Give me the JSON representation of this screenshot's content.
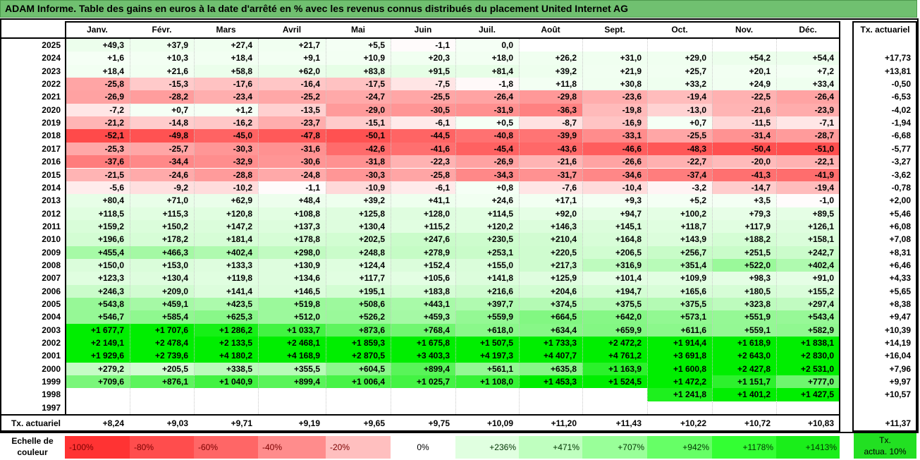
{
  "title": "ADAM Informe. Table des gains en euros à la date d'arrêté en % avec les revenus connus distribués du placement United Internet AG",
  "chart_data": {
    "type": "table",
    "columns": [
      "Janv.",
      "Févr.",
      "Mars",
      "Avril",
      "Mai",
      "Juin",
      "Juil.",
      "Août",
      "Sept.",
      "Oct.",
      "Nov.",
      "Déc."
    ],
    "actuarial_header": "Tx. actuariel",
    "rows": [
      {
        "year": "2025",
        "values": [
          "+49,3",
          "+37,9",
          "+27,4",
          "+21,7",
          "+5,5",
          "-1,1",
          "0,0",
          "",
          "",
          "",
          "",
          ""
        ],
        "tx": ""
      },
      {
        "year": "2024",
        "values": [
          "+1,6",
          "+10,3",
          "+18,4",
          "+9,1",
          "+10,9",
          "+20,3",
          "+18,0",
          "+26,2",
          "+31,0",
          "+29,0",
          "+54,2",
          "+54,4"
        ],
        "tx": "+17,73"
      },
      {
        "year": "2023",
        "values": [
          "+18,4",
          "+21,6",
          "+58,8",
          "+62,0",
          "+83,8",
          "+91,5",
          "+81,4",
          "+39,2",
          "+21,9",
          "+25,7",
          "+20,1",
          "+7,2"
        ],
        "tx": "+13,81"
      },
      {
        "year": "2022",
        "values": [
          "-25,8",
          "-15,3",
          "-17,6",
          "-16,4",
          "-17,5",
          "-7,5",
          "-1,8",
          "+11,8",
          "+30,8",
          "+33,2",
          "+24,9",
          "+33,4"
        ],
        "tx": "-0,50"
      },
      {
        "year": "2021",
        "values": [
          "-26,9",
          "-28,2",
          "-23,4",
          "-25,2",
          "-24,7",
          "-25,5",
          "-26,4",
          "-29,8",
          "-23,6",
          "-19,4",
          "-22,5",
          "-26,4"
        ],
        "tx": "-6,53"
      },
      {
        "year": "2020",
        "values": [
          "-7,2",
          "+0,7",
          "+1,2",
          "-13,5",
          "-29,0",
          "-30,5",
          "-31,9",
          "-36,3",
          "-19,8",
          "-13,0",
          "-21,6",
          "-23,9"
        ],
        "tx": "-4,02"
      },
      {
        "year": "2019",
        "values": [
          "-21,2",
          "-14,8",
          "-16,2",
          "-23,7",
          "-15,1",
          "-6,1",
          "+0,5",
          "-8,7",
          "-16,9",
          "+0,7",
          "-11,5",
          "-7,1"
        ],
        "tx": "-1,94"
      },
      {
        "year": "2018",
        "values": [
          "-52,1",
          "-49,8",
          "-45,0",
          "-47,8",
          "-50,1",
          "-44,5",
          "-40,8",
          "-39,9",
          "-33,1",
          "-25,5",
          "-31,4",
          "-28,7"
        ],
        "tx": "-6,68"
      },
      {
        "year": "2017",
        "values": [
          "-25,3",
          "-25,7",
          "-30,3",
          "-31,6",
          "-42,6",
          "-41,6",
          "-45,4",
          "-43,6",
          "-46,6",
          "-48,3",
          "-50,4",
          "-51,0"
        ],
        "tx": "-5,77"
      },
      {
        "year": "2016",
        "values": [
          "-37,6",
          "-34,4",
          "-32,9",
          "-30,6",
          "-31,8",
          "-22,3",
          "-26,9",
          "-21,6",
          "-26,6",
          "-22,7",
          "-20,0",
          "-22,1"
        ],
        "tx": "-3,27"
      },
      {
        "year": "2015",
        "values": [
          "-21,5",
          "-24,6",
          "-28,8",
          "-24,8",
          "-30,3",
          "-25,8",
          "-34,3",
          "-31,7",
          "-34,6",
          "-37,4",
          "-41,3",
          "-41,9"
        ],
        "tx": "-3,62"
      },
      {
        "year": "2014",
        "values": [
          "-5,6",
          "-9,2",
          "-10,2",
          "-1,1",
          "-10,9",
          "-6,1",
          "+0,8",
          "-7,6",
          "-10,4",
          "-3,2",
          "-14,7",
          "-19,4"
        ],
        "tx": "-0,78"
      },
      {
        "year": "2013",
        "values": [
          "+80,4",
          "+71,0",
          "+62,9",
          "+48,4",
          "+39,2",
          "+41,1",
          "+24,6",
          "+17,1",
          "+9,3",
          "+5,2",
          "+3,5",
          "-1,0"
        ],
        "tx": "+2,00"
      },
      {
        "year": "2012",
        "values": [
          "+118,5",
          "+115,3",
          "+120,8",
          "+108,8",
          "+125,8",
          "+128,0",
          "+114,5",
          "+92,0",
          "+94,7",
          "+100,2",
          "+79,3",
          "+89,5"
        ],
        "tx": "+5,46"
      },
      {
        "year": "2011",
        "values": [
          "+159,2",
          "+150,2",
          "+147,2",
          "+137,3",
          "+130,4",
          "+115,2",
          "+120,2",
          "+146,3",
          "+145,1",
          "+118,7",
          "+117,9",
          "+126,1"
        ],
        "tx": "+6,08"
      },
      {
        "year": "2010",
        "values": [
          "+196,6",
          "+178,2",
          "+181,4",
          "+178,8",
          "+202,5",
          "+247,6",
          "+230,5",
          "+210,4",
          "+164,8",
          "+143,9",
          "+188,2",
          "+158,1"
        ],
        "tx": "+7,08"
      },
      {
        "year": "2009",
        "values": [
          "+455,4",
          "+466,3",
          "+402,4",
          "+298,0",
          "+248,8",
          "+278,9",
          "+253,1",
          "+220,5",
          "+206,5",
          "+256,7",
          "+251,5",
          "+242,7"
        ],
        "tx": "+8,31"
      },
      {
        "year": "2008",
        "values": [
          "+150,0",
          "+153,0",
          "+133,3",
          "+130,9",
          "+124,4",
          "+152,4",
          "+155,0",
          "+217,3",
          "+316,9",
          "+351,4",
          "+522,0",
          "+402,4"
        ],
        "tx": "+6,46"
      },
      {
        "year": "2007",
        "values": [
          "+123,3",
          "+130,4",
          "+119,8",
          "+134,6",
          "+117,7",
          "+105,6",
          "+141,8",
          "+125,9",
          "+101,4",
          "+109,9",
          "+98,3",
          "+91,0"
        ],
        "tx": "+4,33"
      },
      {
        "year": "2006",
        "values": [
          "+246,3",
          "+209,0",
          "+141,4",
          "+146,5",
          "+195,1",
          "+183,8",
          "+216,6",
          "+204,6",
          "+194,7",
          "+165,6",
          "+180,5",
          "+155,2"
        ],
        "tx": "+5,65"
      },
      {
        "year": "2005",
        "values": [
          "+543,8",
          "+459,1",
          "+423,5",
          "+519,8",
          "+508,6",
          "+443,1",
          "+397,7",
          "+374,5",
          "+375,5",
          "+375,5",
          "+323,8",
          "+297,4"
        ],
        "tx": "+8,38"
      },
      {
        "year": "2004",
        "values": [
          "+546,7",
          "+585,4",
          "+625,3",
          "+512,0",
          "+526,2",
          "+459,3",
          "+559,9",
          "+664,5",
          "+642,0",
          "+573,1",
          "+551,9",
          "+543,4"
        ],
        "tx": "+9,47"
      },
      {
        "year": "2003",
        "values": [
          "+1 677,7",
          "+1 707,6",
          "+1 286,2",
          "+1 033,7",
          "+873,6",
          "+768,4",
          "+618,0",
          "+634,4",
          "+659,9",
          "+611,6",
          "+559,1",
          "+582,9"
        ],
        "tx": "+10,39"
      },
      {
        "year": "2002",
        "values": [
          "+2 149,1",
          "+2 478,4",
          "+2 133,5",
          "+2 468,1",
          "+1 859,3",
          "+1 675,8",
          "+1 507,5",
          "+1 733,3",
          "+2 472,2",
          "+1 914,4",
          "+1 618,9",
          "+1 838,1"
        ],
        "tx": "+14,19"
      },
      {
        "year": "2001",
        "values": [
          "+1 929,6",
          "+2 739,6",
          "+4 180,2",
          "+4 168,9",
          "+2 870,5",
          "+3 403,3",
          "+4 197,3",
          "+4 407,7",
          "+4 761,2",
          "+3 691,8",
          "+2 643,0",
          "+2 830,0"
        ],
        "tx": "+16,04"
      },
      {
        "year": "2000",
        "values": [
          "+279,2",
          "+205,5",
          "+338,5",
          "+355,5",
          "+604,5",
          "+899,4",
          "+561,1",
          "+635,8",
          "+1 163,9",
          "+1 600,8",
          "+2 427,8",
          "+2 531,0"
        ],
        "tx": "+7,96"
      },
      {
        "year": "1999",
        "values": [
          "+709,6",
          "+876,1",
          "+1 040,9",
          "+899,4",
          "+1 006,4",
          "+1 025,7",
          "+1 108,0",
          "+1 453,3",
          "+1 524,5",
          "+1 472,2",
          "+1 151,7",
          "+777,0"
        ],
        "tx": "+9,97"
      },
      {
        "year": "1998",
        "values": [
          "",
          "",
          "",
          "",
          "",
          "",
          "",
          "",
          "",
          "+1 241,8",
          "+1 401,2",
          "+1 427,5"
        ],
        "tx": "+10,57"
      },
      {
        "year": "1997",
        "values": [
          "",
          "",
          "",
          "",
          "",
          "",
          "",
          "",
          "",
          "",
          "",
          ""
        ],
        "tx": ""
      }
    ],
    "footer": {
      "label": "Tx. actuariel",
      "values": [
        "+8,24",
        "+9,03",
        "+9,71",
        "+9,19",
        "+9,65",
        "+9,75",
        "+10,09",
        "+11,20",
        "+11,43",
        "+10,22",
        "+10,72",
        "+10,83"
      ],
      "total": "+11,37"
    },
    "scale": {
      "label_line1": "Echelle de",
      "label_line2": "couleur",
      "steps": [
        {
          "label": "-100%",
          "color": "#ff3333",
          "align": "left"
        },
        {
          "label": "-80%",
          "color": "#ff4d4d",
          "align": "left"
        },
        {
          "label": "-60%",
          "color": "#ff6666",
          "align": "left"
        },
        {
          "label": "-40%",
          "color": "#ff8c8c",
          "align": "left"
        },
        {
          "label": "-20%",
          "color": "#ffbfbf",
          "align": "left"
        },
        {
          "label": "0%",
          "color": "#ffffff",
          "align": "mid"
        },
        {
          "label": "+236%",
          "color": "#e0ffe0",
          "align": "right"
        },
        {
          "label": "+471%",
          "color": "#bfffbf",
          "align": "right"
        },
        {
          "label": "+707%",
          "color": "#99ff99",
          "align": "right"
        },
        {
          "label": "+942%",
          "color": "#66ff66",
          "align": "right"
        },
        {
          "label": "+1178%",
          "color": "#33ff33",
          "align": "right"
        },
        {
          "label": "+1413%",
          "color": "#1aee1a",
          "align": "right"
        }
      ],
      "note_line1": "Tx.",
      "note_line2": "actua. 10%",
      "note_color": "#22e022"
    }
  }
}
